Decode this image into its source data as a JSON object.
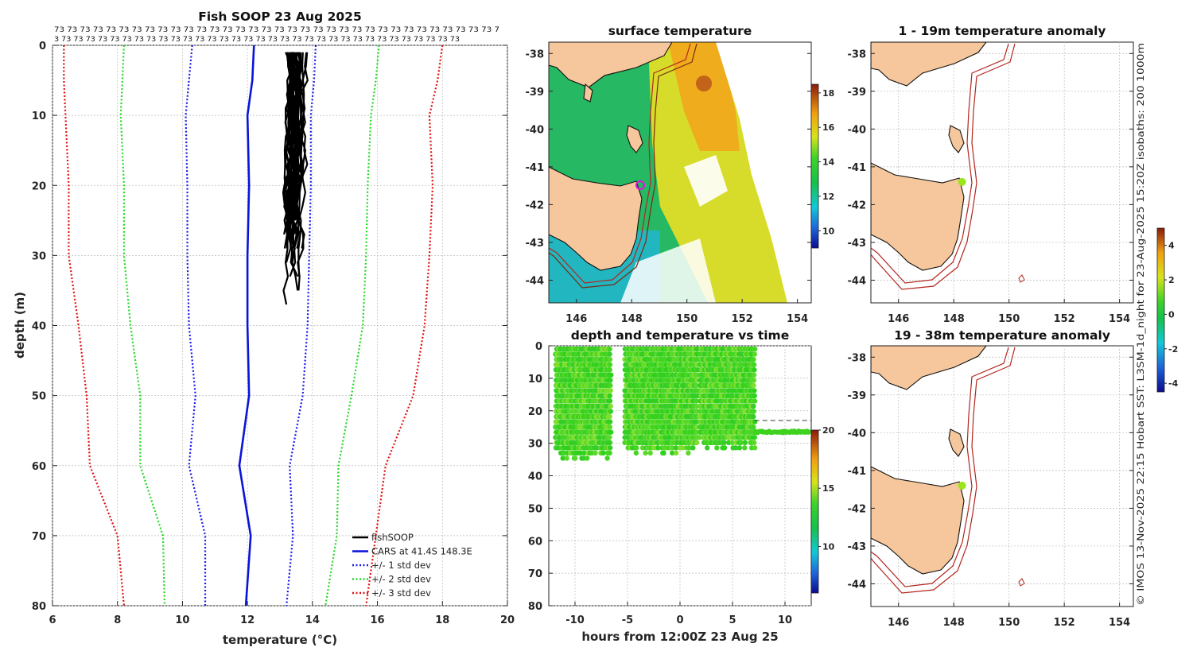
{
  "chart_data": [
    {
      "id": "profile",
      "type": "line",
      "title": "Fish SOOP 23 Aug 2025",
      "xlabel": "temperature (",
      "xlabel_unit": "°C",
      "xlabel_close": ")",
      "ylabel": "depth (m)",
      "xlim": [
        6,
        20
      ],
      "ylim": [
        0,
        80
      ],
      "xticks": [
        "6",
        "8",
        "10",
        "12",
        "14",
        "16",
        "18",
        "20"
      ],
      "yticks": [
        "0",
        "10",
        "20",
        "30",
        "40",
        "50",
        "60",
        "70",
        "80"
      ],
      "top_labels_row1": "73 73 73 73 73 73 73 73 73 73 73 73 73 73 73 73 73 73 73 73 73 73 73 73 73 73 73 73 73 73 73 73 73 73 7",
      "top_labels_row2": "3 73 73 73 73 73 73 73 73 73 73 73 73 73 73 73 73 73 73 73 73 73 73 73 73 73 73 73 73 73 73 73 73 73",
      "colors": {
        "fishsoop": "#000000",
        "cars": "#0a14d8",
        "std1": "#1a1ae6",
        "std2": "#22d922",
        "std3": "#e01010"
      },
      "legend": [
        "fishSOOP",
        "CARS at 41.4S 148.3E",
        "+/- 1 std dev",
        "+/- 2 std dev",
        "+/- 3 std dev"
      ],
      "legend_location": "bottom-right",
      "depth": [
        0,
        5,
        10,
        20,
        30,
        40,
        50,
        60,
        70,
        80
      ],
      "series": [
        {
          "name": "CARS mean",
          "values": [
            12.2,
            12.15,
            12.0,
            12.05,
            12.0,
            12.0,
            12.05,
            11.75,
            12.1,
            11.95
          ]
        },
        {
          "name": "-1 std",
          "values": [
            10.3,
            10.2,
            10.1,
            10.15,
            10.15,
            10.2,
            10.4,
            10.2,
            10.7,
            10.7
          ]
        },
        {
          "name": "+1 std",
          "values": [
            14.1,
            14.05,
            13.95,
            13.95,
            13.9,
            13.85,
            13.7,
            13.3,
            13.4,
            13.2
          ]
        },
        {
          "name": "-2 std",
          "values": [
            8.2,
            8.15,
            8.1,
            8.2,
            8.2,
            8.4,
            8.7,
            8.7,
            9.4,
            9.45
          ]
        },
        {
          "name": "+2 std",
          "values": [
            16.05,
            15.95,
            15.8,
            15.7,
            15.65,
            15.55,
            15.2,
            14.8,
            14.75,
            14.4
          ]
        },
        {
          "name": "-3 std",
          "values": [
            6.35,
            6.35,
            6.4,
            6.5,
            6.5,
            6.8,
            7.05,
            7.15,
            8.0,
            8.2
          ]
        },
        {
          "name": "+3 std",
          "values": [
            18.0,
            17.85,
            17.6,
            17.7,
            17.6,
            17.45,
            17.1,
            16.25,
            15.95,
            15.65
          ]
        }
      ],
      "fishsoop": {
        "temp_range": [
          13.1,
          13.9
        ],
        "depth_range": [
          1,
          38
        ]
      }
    },
    {
      "id": "sst_map",
      "type": "heatmap",
      "title": "surface temperature",
      "xticks": [
        "146",
        "148",
        "150",
        "152",
        "154"
      ],
      "yticks": [
        "-38",
        "-39",
        "-40",
        "-41",
        "-42",
        "-43",
        "-44"
      ],
      "xlim": [
        145,
        154.5
      ],
      "ylim": [
        -44.6,
        -37.7
      ],
      "colorbar_ticks": [
        "10",
        "12",
        "14",
        "16",
        "18"
      ],
      "colorbar_range": [
        9,
        18.5
      ],
      "marker": {
        "lon": 148.3,
        "lat": -41.4
      }
    },
    {
      "id": "depth_time",
      "type": "scatter",
      "title": "depth and temperature vs time",
      "xlabel": "hours from 12:00Z 23 Aug 25",
      "xticks": [
        "-10",
        "-5",
        "0",
        "5",
        "10"
      ],
      "yticks": [
        "0",
        "10",
        "20",
        "30",
        "40",
        "50",
        "60",
        "70",
        "80"
      ],
      "xlim": [
        -12.5,
        12.5
      ],
      "ylim": [
        0,
        80
      ],
      "colorbar_ticks": [
        "10",
        "15",
        "20"
      ],
      "colorbar_range": [
        6,
        20
      ],
      "segments": [
        {
          "t0": -11.8,
          "t1": -6.6,
          "dmax": 35
        },
        {
          "t0": -5.2,
          "t1": 1.7,
          "dmax": 34
        },
        {
          "t0": 1.9,
          "t1": 7.1,
          "dmax": 32
        }
      ],
      "tail": {
        "t0": 7.1,
        "t1": 12.3,
        "depth": 26.5
      },
      "dashed_depth": 23
    },
    {
      "id": "anom_1_19",
      "type": "heatmap",
      "title": "1 - 19m temperature anomaly",
      "xticks": [
        "146",
        "148",
        "150",
        "152",
        "154"
      ],
      "yticks": [
        "-38",
        "-39",
        "-40",
        "-41",
        "-42",
        "-43",
        "-44"
      ],
      "point": {
        "lon": 148.3,
        "lat": -41.4,
        "anomaly": 0.3
      }
    },
    {
      "id": "anom_19_38",
      "type": "heatmap",
      "title": "19 - 38m temperature anomaly",
      "xticks": [
        "146",
        "148",
        "150",
        "152",
        "154"
      ],
      "yticks": [
        "-38",
        "-39",
        "-40",
        "-41",
        "-42",
        "-43",
        "-44"
      ],
      "point": {
        "lon": 148.3,
        "lat": -41.4,
        "anomaly": 0.3
      },
      "colorbar_ticks": [
        "-4",
        "-2",
        "0",
        "2",
        "4"
      ],
      "colorbar_range": [
        -4.5,
        5
      ]
    }
  ],
  "footer_text": "© IMOS 13-Nov-2025 22:15 Hobart SST: L3SM-1d_night for 23-Aug-2025 15:20Z isobaths: 200  1000m"
}
